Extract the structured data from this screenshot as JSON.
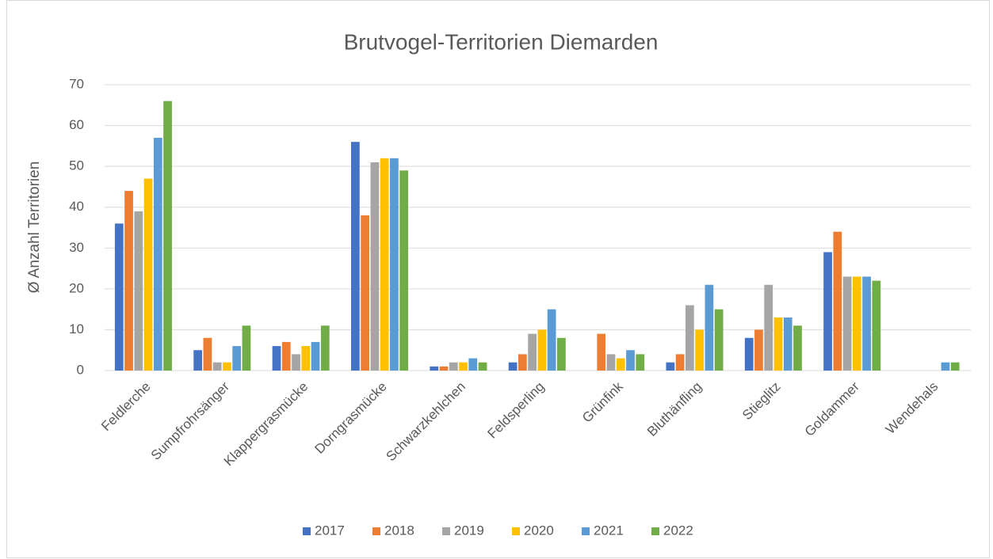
{
  "chart_data": {
    "type": "bar",
    "title": "Brutvogel-Territorien Diemarden",
    "y_label": "Ø Anzahl Territorien",
    "categories": [
      "Feldlerche",
      "Sumpfrohrsänger",
      "Klappergrasmücke",
      "Dorngrasmücke",
      "Schwarzkehlchen",
      "Feldsperling",
      "Grünfink",
      "Bluthänfling",
      "Stieglitz",
      "Goldammer",
      "Wendehals"
    ],
    "series": [
      {
        "name": "2017",
        "color": "#4472c4",
        "values": [
          36,
          5,
          6,
          56,
          1,
          2,
          0,
          2,
          8,
          29,
          0
        ]
      },
      {
        "name": "2018",
        "color": "#ed7d31",
        "values": [
          44,
          8,
          7,
          38,
          1,
          4,
          9,
          4,
          10,
          34,
          0
        ]
      },
      {
        "name": "2019",
        "color": "#a5a5a5",
        "values": [
          39,
          2,
          4,
          51,
          2,
          9,
          4,
          16,
          21,
          23,
          0
        ]
      },
      {
        "name": "2020",
        "color": "#ffc000",
        "values": [
          47,
          2,
          6,
          52,
          2,
          10,
          3,
          10,
          13,
          23,
          0
        ]
      },
      {
        "name": "2021",
        "color": "#5b9bd5",
        "values": [
          57,
          6,
          7,
          52,
          3,
          15,
          5,
          21,
          13,
          23,
          2
        ]
      },
      {
        "name": "2022",
        "color": "#70ad47",
        "values": [
          66,
          11,
          11,
          49,
          2,
          8,
          4,
          15,
          11,
          22,
          2
        ]
      }
    ],
    "ylim": [
      0,
      70
    ],
    "yticks": [
      0,
      10,
      20,
      30,
      40,
      50,
      60,
      70
    ],
    "grid": true,
    "legend": "bottom"
  }
}
